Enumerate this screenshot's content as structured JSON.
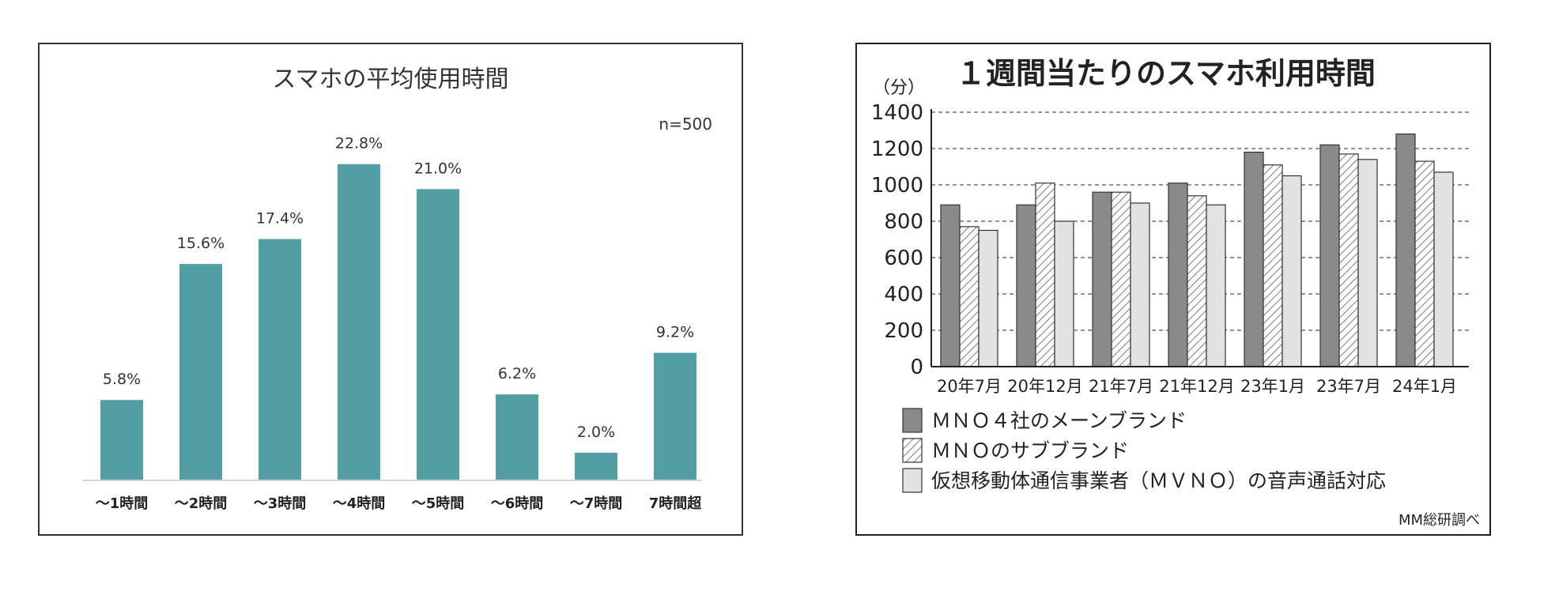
{
  "chart_data": [
    {
      "type": "bar",
      "title": "スマホの平均使用時間",
      "annotation": "n=500",
      "categories": [
        "〜1時間",
        "〜2時間",
        "〜3時間",
        "〜4時間",
        "〜5時間",
        "〜6時間",
        "〜7時間",
        "7時間超"
      ],
      "values": [
        5.8,
        15.6,
        17.4,
        22.8,
        21.0,
        6.2,
        2.0,
        9.2
      ],
      "value_labels": [
        "5.8%",
        "15.6%",
        "17.4%",
        "22.8%",
        "21.0%",
        "6.2%",
        "2.0%",
        "9.2%"
      ],
      "ylim": [
        0,
        27
      ],
      "grid": false,
      "colors": {
        "bar": "#539ea3",
        "border": "#333333",
        "baseline": "#d6d6d6"
      }
    },
    {
      "type": "bar",
      "title": "１週間当たりのスマホ利用時間",
      "ylabel": "（分）",
      "source": "MM総研調べ",
      "categories": [
        "20年7月",
        "20年12月",
        "21年7月",
        "21年12月",
        "23年1月",
        "23年7月",
        "24年1月"
      ],
      "yticks": [
        0,
        200,
        400,
        600,
        800,
        1000,
        1200,
        1400
      ],
      "ylim": [
        0,
        1400
      ],
      "grid": true,
      "legend_position": "bottom",
      "series": [
        {
          "name": "ＭＮＯ４社のメーンブランド",
          "values": [
            890,
            890,
            960,
            1010,
            1180,
            1220,
            1280
          ],
          "fill": "#8a8a8a",
          "pattern": "solid"
        },
        {
          "name": "ＭＮＯのサブブランド",
          "values": [
            770,
            1010,
            960,
            940,
            1110,
            1170,
            1130
          ],
          "fill": "#ffffff",
          "pattern": "hatch"
        },
        {
          "name": "仮想移動体通信事業者（ＭＶＮＯ）の音声通話対応",
          "values": [
            750,
            800,
            900,
            890,
            1050,
            1140,
            1070
          ],
          "fill": "#e2e2e2",
          "pattern": "solid"
        }
      ]
    }
  ]
}
